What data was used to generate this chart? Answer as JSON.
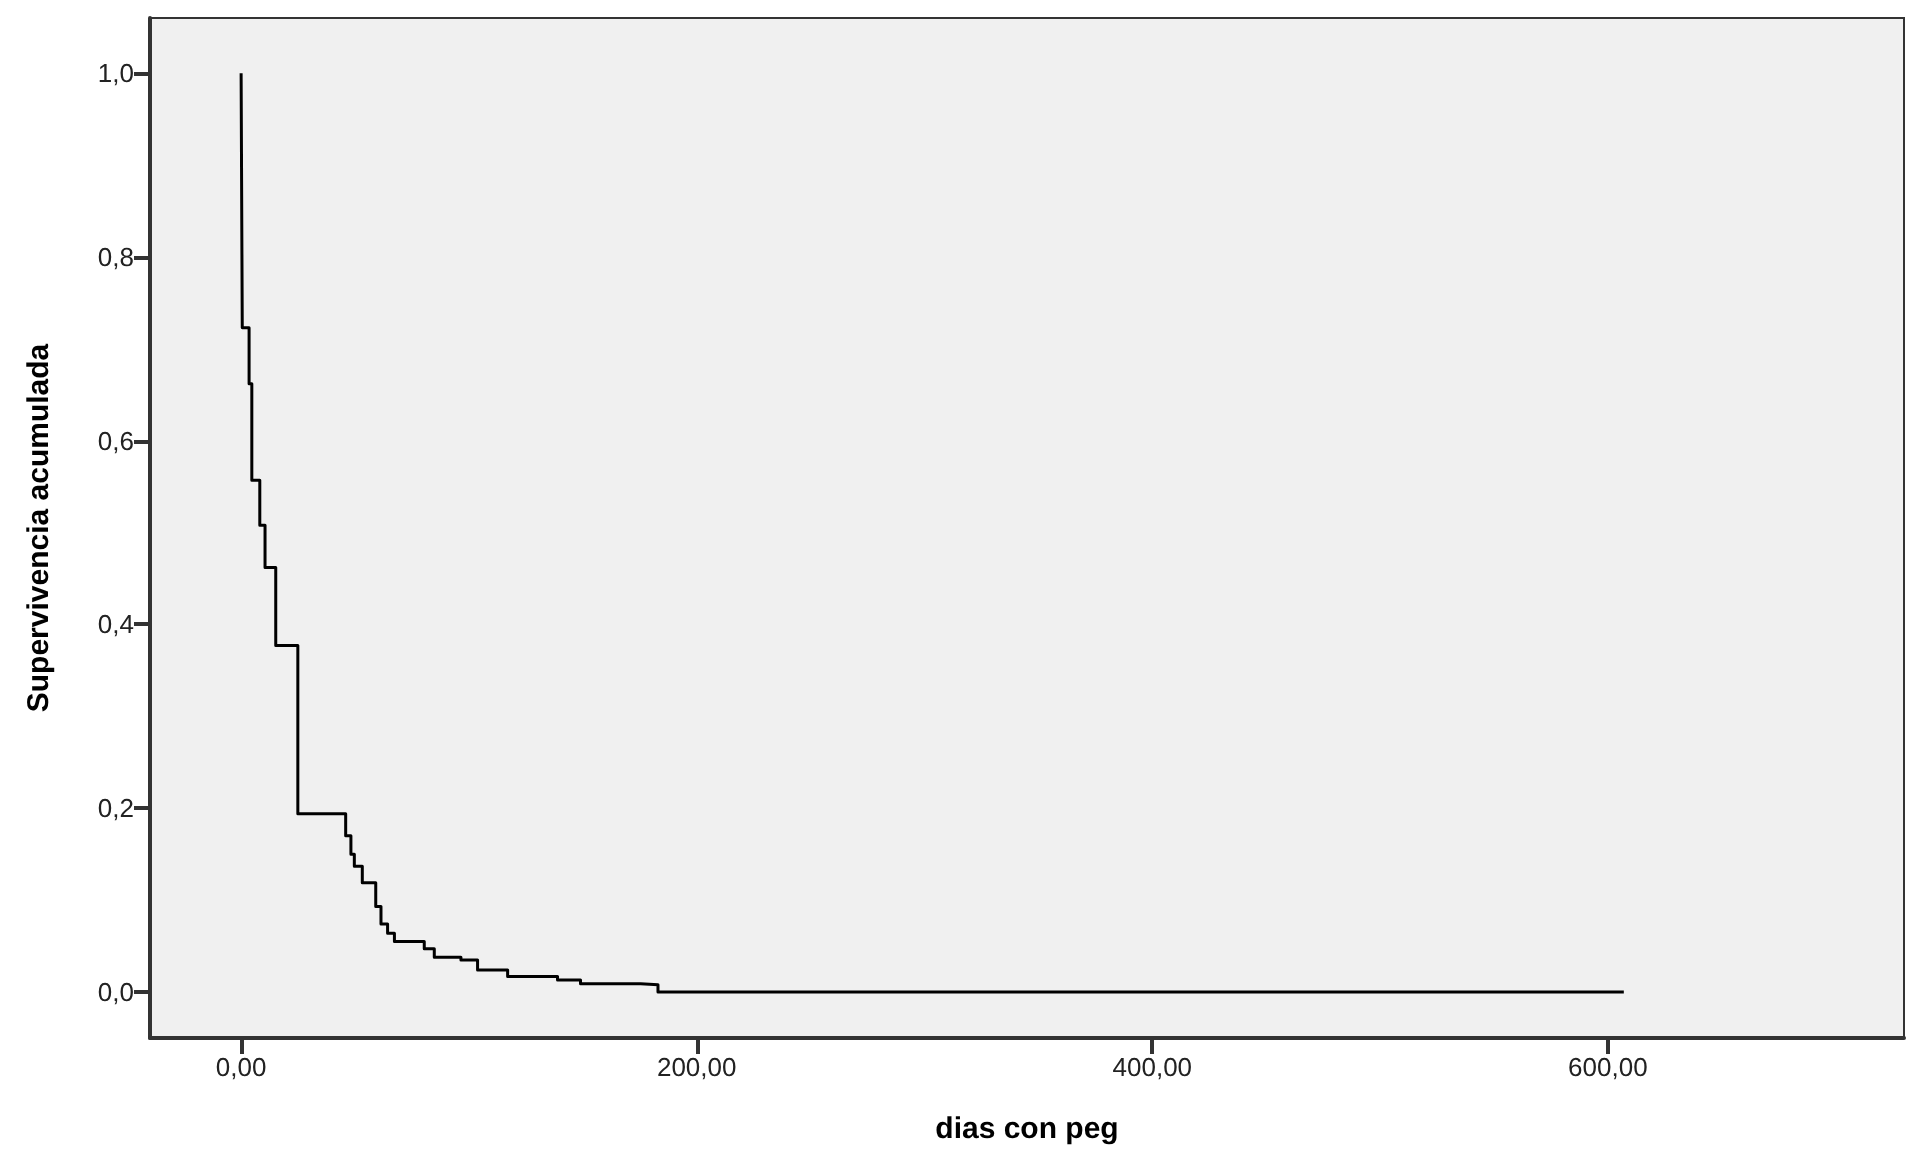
{
  "chart_data": {
    "type": "step",
    "xlabel": "dias con peg",
    "ylabel": "Supervivencia acumulada",
    "color": "#000000",
    "x": [
      0,
      0.5,
      3.5,
      4.7,
      8.2,
      10.5,
      15.2,
      24.9,
      45.9,
      48.2,
      49.7,
      53.2,
      59.1,
      61.4,
      64.3,
      67.3,
      80.4,
      84.8,
      96.5,
      103.8,
      117,
      138.9,
      149,
      175.4,
      183,
      607
    ],
    "values": [
      1.0,
      0.723,
      0.662,
      0.557,
      0.508,
      0.462,
      0.377,
      0.194,
      0.17,
      0.15,
      0.137,
      0.119,
      0.093,
      0.074,
      0.064,
      0.055,
      0.047,
      0.038,
      0.035,
      0.024,
      0.017,
      0.013,
      0.009,
      0.008,
      0.0,
      0.0
    ],
    "xlim": [
      -40,
      730
    ],
    "ylim": [
      -0.05,
      1.06
    ],
    "xticks": [
      {
        "value": 0,
        "label": "0,00"
      },
      {
        "value": 200,
        "label": "200,00"
      },
      {
        "value": 400,
        "label": "400,00"
      },
      {
        "value": 600,
        "label": "600,00"
      }
    ],
    "yticks": [
      {
        "value": 0,
        "label": "0,0"
      },
      {
        "value": 0.2,
        "label": "0,2"
      },
      {
        "value": 0.4,
        "label": "0,4"
      },
      {
        "value": 0.6,
        "label": "0,6"
      },
      {
        "value": 0.8,
        "label": "0,8"
      },
      {
        "value": 1.0,
        "label": "1,0"
      }
    ],
    "grid": false
  }
}
